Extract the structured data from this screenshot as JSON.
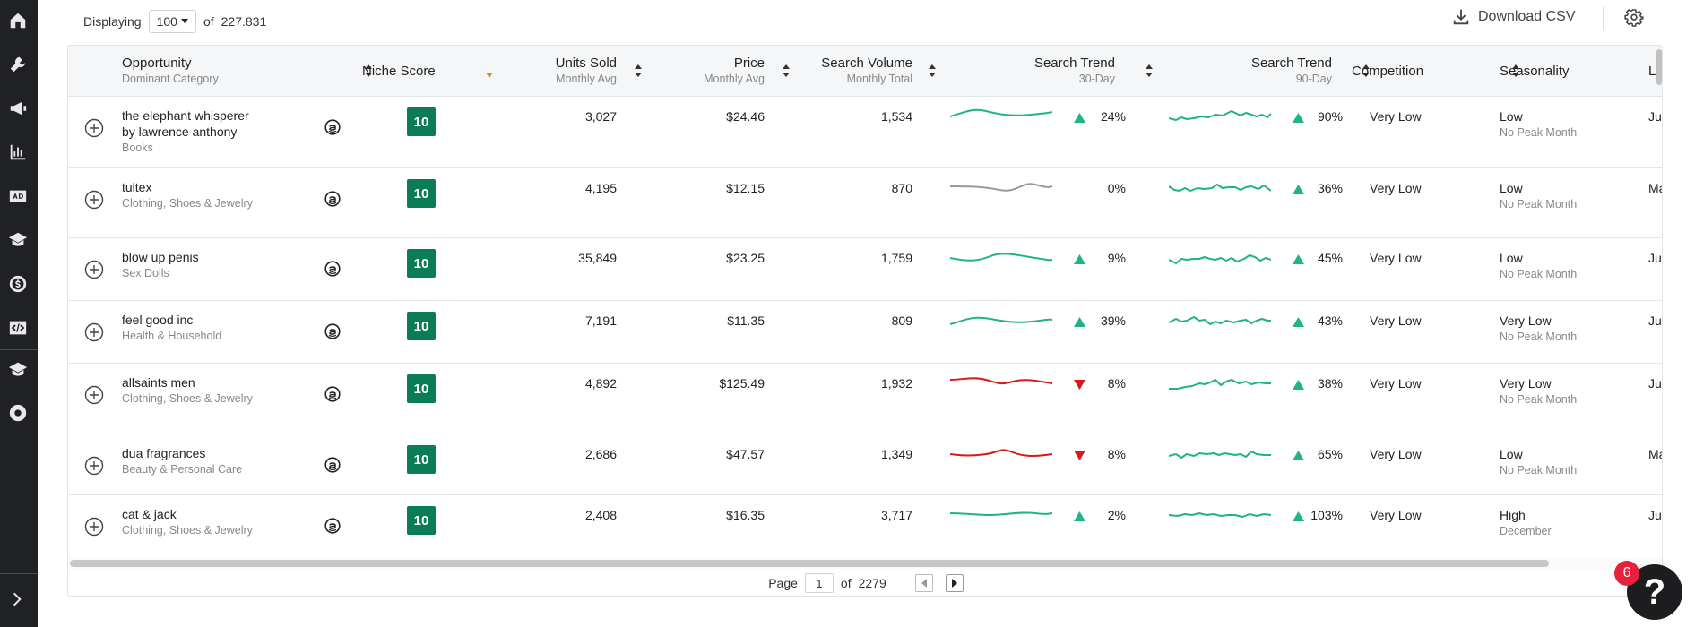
{
  "toolbar": {
    "displaying_label": "Displaying",
    "page_size": "100",
    "of_label": "of",
    "total": "227.831",
    "download_label": "Download CSV"
  },
  "columns": [
    {
      "label": "Opportunity",
      "sub": "Dominant Category"
    },
    {
      "label": "Niche Score",
      "sub": ""
    },
    {
      "label": "Units Sold",
      "sub": "Monthly Avg"
    },
    {
      "label": "Price",
      "sub": "Monthly Avg"
    },
    {
      "label": "Search Volume",
      "sub": "Monthly Total"
    },
    {
      "label": "Search Trend",
      "sub": "30-Day"
    },
    {
      "label": "Search Trend",
      "sub": "90-Day"
    },
    {
      "label": "Competition",
      "sub": ""
    },
    {
      "label": "Seasonality",
      "sub": ""
    },
    {
      "label": "L",
      "sub": ""
    }
  ],
  "rows": [
    {
      "name": "the elephant whisperer by lawrence anthony",
      "category": "Books",
      "score": "10",
      "units": "3,027",
      "price": "$24.46",
      "volume": "1,534",
      "t30": "24%",
      "t30_dir": "up",
      "t90": "90%",
      "t90_dir": "up",
      "competition": "Very Low",
      "season": "Low",
      "season_sub": "No Peak Month",
      "last": "Ju"
    },
    {
      "name": "tultex",
      "category": "Clothing, Shoes & Jewelry",
      "score": "10",
      "units": "4,195",
      "price": "$12.15",
      "volume": "870",
      "t30": "0%",
      "t30_dir": "flat",
      "t90": "36%",
      "t90_dir": "up",
      "competition": "Very Low",
      "season": "Low",
      "season_sub": "No Peak Month",
      "last": "Ma"
    },
    {
      "name": "blow up penis",
      "category": "Sex Dolls",
      "score": "10",
      "units": "35,849",
      "price": "$23.25",
      "volume": "1,759",
      "t30": "9%",
      "t30_dir": "up",
      "t90": "45%",
      "t90_dir": "up",
      "competition": "Very Low",
      "season": "Low",
      "season_sub": "No Peak Month",
      "last": "Ju"
    },
    {
      "name": "feel good inc",
      "category": "Health & Household",
      "score": "10",
      "units": "7,191",
      "price": "$11.35",
      "volume": "809",
      "t30": "39%",
      "t30_dir": "up",
      "t90": "43%",
      "t90_dir": "up",
      "competition": "Very Low",
      "season": "Very Low",
      "season_sub": "No Peak Month",
      "last": "Ju"
    },
    {
      "name": "allsaints men",
      "category": "Clothing, Shoes & Jewelry",
      "score": "10",
      "units": "4,892",
      "price": "$125.49",
      "volume": "1,932",
      "t30": "8%",
      "t30_dir": "down",
      "t90": "38%",
      "t90_dir": "up",
      "competition": "Very Low",
      "season": "Very Low",
      "season_sub": "No Peak Month",
      "last": "Ju"
    },
    {
      "name": "dua fragrances",
      "category": "Beauty & Personal Care",
      "score": "10",
      "units": "2,686",
      "price": "$47.57",
      "volume": "1,349",
      "t30": "8%",
      "t30_dir": "down",
      "t90": "65%",
      "t90_dir": "up",
      "competition": "Very Low",
      "season": "Low",
      "season_sub": "No Peak Month",
      "last": "Ma"
    },
    {
      "name": "cat & jack",
      "category": "Clothing, Shoes & Jewelry",
      "score": "10",
      "units": "2,408",
      "price": "$16.35",
      "volume": "3,717",
      "t30": "2%",
      "t30_dir": "up",
      "t90": "103%",
      "t90_dir": "up",
      "competition": "Very Low",
      "season": "High",
      "season_sub": "December",
      "last": "Ju"
    }
  ],
  "pager": {
    "page_label": "Page",
    "page": "1",
    "of_label": "of",
    "total_pages": "2279"
  },
  "help": {
    "badge_count": "6",
    "icon_char": "?"
  },
  "colors": {
    "accent": "#0a7d57",
    "up": "#1fb57f",
    "down": "#d7191c",
    "flat": "#9a9a9a",
    "badge": "#e5213b"
  }
}
